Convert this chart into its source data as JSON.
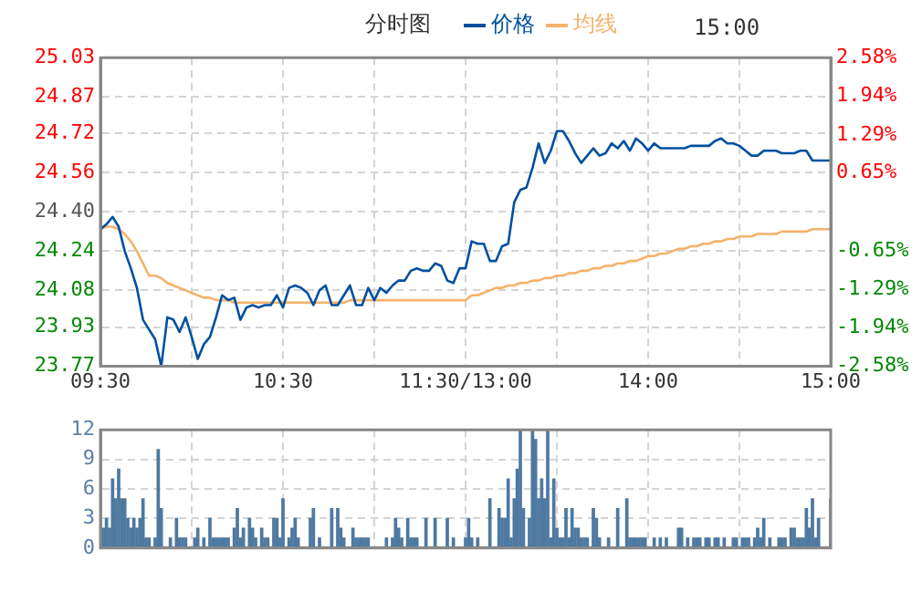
{
  "chart_data": [
    {
      "type": "line",
      "title": "分时图",
      "annotations": [
        "15:00"
      ],
      "legend": "top",
      "grid": true,
      "marker": "none",
      "line_style": "solid",
      "categories": [
        "09:30",
        null,
        null,
        null,
        null,
        null,
        null,
        null,
        null,
        null,
        null,
        null,
        null,
        null,
        null,
        null,
        null,
        null,
        null,
        null,
        null,
        null,
        null,
        null,
        null,
        null,
        null,
        null,
        null,
        null,
        "10:30",
        null,
        null,
        null,
        null,
        null,
        null,
        null,
        null,
        null,
        null,
        null,
        null,
        null,
        null,
        null,
        null,
        null,
        null,
        null,
        null,
        null,
        null,
        null,
        null,
        null,
        null,
        null,
        null,
        null,
        "11:30/13:00",
        null,
        null,
        null,
        null,
        null,
        null,
        null,
        null,
        null,
        null,
        null,
        null,
        null,
        null,
        null,
        null,
        null,
        null,
        null,
        null,
        null,
        null,
        null,
        null,
        null,
        null,
        null,
        null,
        null,
        "14:00",
        null,
        null,
        null,
        null,
        null,
        null,
        null,
        null,
        null,
        null,
        null,
        null,
        null,
        null,
        null,
        null,
        null,
        null,
        null,
        null,
        null,
        null,
        null,
        null,
        null,
        null,
        null,
        null,
        null,
        "15:00"
      ],
      "ylim": [
        23.77,
        25.03
      ],
      "yticks": [
        23.77,
        23.93,
        24.08,
        24.24,
        {
          "value": 24.4,
          "label": "24.40"
        },
        24.56,
        24.72,
        24.87,
        25.03
      ],
      "y2lim": [
        -2.58,
        2.58
      ],
      "y2ticks": [
        {
          "value": -2.58,
          "label": "-2.58%"
        },
        {
          "value": -1.94,
          "label": "-1.94%"
        },
        {
          "value": -1.29,
          "label": "-1.29%"
        },
        {
          "value": -0.65,
          "label": "-0.65%"
        },
        {
          "value": 0,
          "label": null
        },
        {
          "value": 0.65,
          "label": "0.65%"
        },
        {
          "value": 1.29,
          "label": "1.29%"
        },
        {
          "value": 1.94,
          "label": "1.94%"
        },
        {
          "value": 2.58,
          "label": "2.58%"
        }
      ],
      "series": [
        {
          "name": "价格",
          "color": "#0050a0",
          "values": [
            24.33,
            24.35,
            24.38,
            24.34,
            24.24,
            24.17,
            24.09,
            23.96,
            23.92,
            23.88,
            23.77,
            23.97,
            23.96,
            23.91,
            23.97,
            23.89,
            23.8,
            23.86,
            23.89,
            23.97,
            24.06,
            24.04,
            24.05,
            23.96,
            24.01,
            24.02,
            24.01,
            24.02,
            24.02,
            24.06,
            24.01,
            24.09,
            24.1,
            24.09,
            24.07,
            24.02,
            24.08,
            24.1,
            24.02,
            24.02,
            24.06,
            24.1,
            24.02,
            24.02,
            24.09,
            24.04,
            24.09,
            24.07,
            24.1,
            24.12,
            24.12,
            24.16,
            24.17,
            24.16,
            24.16,
            24.19,
            24.18,
            24.12,
            24.11,
            24.17,
            24.17,
            24.28,
            24.27,
            24.27,
            24.2,
            24.2,
            24.26,
            24.27,
            24.44,
            24.49,
            24.5,
            24.58,
            24.68,
            24.6,
            24.65,
            24.73,
            24.73,
            24.69,
            24.64,
            24.6,
            24.63,
            24.66,
            24.63,
            24.64,
            24.68,
            24.66,
            24.69,
            24.65,
            24.7,
            24.68,
            24.65,
            24.68,
            24.66,
            24.66,
            24.66,
            24.66,
            24.66,
            24.67,
            24.67,
            24.67,
            24.67,
            24.69,
            24.7,
            24.68,
            24.68,
            24.67,
            24.65,
            24.63,
            24.63,
            24.65,
            24.65,
            24.65,
            24.64,
            24.64,
            24.64,
            24.65,
            24.65,
            24.61,
            24.61,
            24.61,
            24.61
          ]
        },
        {
          "name": "均线",
          "color": "#f5b26b",
          "values": [
            24.33,
            24.34,
            24.34,
            24.33,
            24.31,
            24.28,
            24.24,
            24.19,
            24.14,
            24.14,
            24.13,
            24.11,
            24.1,
            24.09,
            24.08,
            24.07,
            24.06,
            24.05,
            24.05,
            24.04,
            24.04,
            24.04,
            24.03,
            24.03,
            24.03,
            24.03,
            24.03,
            24.03,
            24.03,
            24.03,
            24.03,
            24.03,
            24.03,
            24.03,
            24.03,
            24.03,
            24.03,
            24.03,
            24.03,
            24.03,
            24.03,
            24.04,
            24.04,
            24.04,
            24.04,
            24.04,
            24.04,
            24.04,
            24.04,
            24.04,
            24.04,
            24.04,
            24.04,
            24.04,
            24.04,
            24.04,
            24.04,
            24.04,
            24.04,
            24.04,
            24.04,
            24.06,
            24.06,
            24.07,
            24.08,
            24.09,
            24.09,
            24.1,
            24.1,
            24.11,
            24.11,
            24.12,
            24.12,
            24.13,
            24.13,
            24.14,
            24.14,
            24.15,
            24.15,
            24.16,
            24.16,
            24.17,
            24.17,
            24.18,
            24.18,
            24.19,
            24.19,
            24.2,
            24.2,
            24.21,
            24.22,
            24.22,
            24.23,
            24.23,
            24.24,
            24.25,
            24.25,
            24.26,
            24.26,
            24.27,
            24.27,
            24.28,
            24.28,
            24.29,
            24.29,
            24.3,
            24.3,
            24.3,
            24.31,
            24.31,
            24.31,
            24.31,
            24.32,
            24.32,
            24.32,
            24.32,
            24.32,
            24.33,
            24.33,
            24.33,
            24.33
          ]
        }
      ]
    },
    {
      "type": "bar",
      "grid": true,
      "tick_labels": "y",
      "categories": [
        null,
        null,
        null,
        null,
        null,
        null,
        null,
        null,
        null,
        null,
        null,
        null,
        null,
        null,
        null,
        null,
        null,
        null,
        null,
        null,
        null,
        null,
        null,
        null,
        null,
        null,
        null,
        null,
        null,
        null,
        null,
        null,
        null,
        null,
        null,
        null,
        null,
        null,
        null,
        null,
        null,
        null,
        null,
        null,
        null,
        null,
        null,
        null,
        null,
        null,
        null,
        null,
        null,
        null,
        null,
        null,
        null,
        null,
        null,
        null,
        null,
        null,
        null,
        null,
        null,
        null,
        null,
        null,
        null,
        null,
        null,
        null,
        null,
        null,
        null,
        null,
        null,
        null,
        null,
        null,
        null,
        null,
        null,
        null,
        null,
        null,
        null,
        null,
        null,
        null,
        null,
        null,
        null,
        null,
        null,
        null,
        null,
        null,
        null,
        null,
        null,
        null,
        null,
        null,
        null,
        null,
        null,
        null,
        null,
        null,
        null,
        null,
        null,
        null,
        null,
        null,
        null,
        null,
        null,
        null,
        null,
        null,
        null,
        null,
        null,
        null,
        null,
        null,
        null,
        null,
        null,
        null,
        null,
        null,
        null,
        null,
        null,
        null,
        null,
        null,
        null,
        null,
        null,
        null,
        null,
        null,
        null,
        null,
        null,
        null,
        null,
        null,
        null,
        null,
        null,
        null,
        null,
        null,
        null,
        null,
        null,
        null,
        null,
        null,
        null,
        null,
        null,
        null,
        null,
        null,
        null,
        null,
        null,
        null,
        null,
        null,
        null,
        null,
        null,
        null,
        null,
        null,
        null,
        null,
        null,
        null,
        null,
        null,
        null,
        null,
        null,
        null,
        null,
        null,
        null,
        null,
        null,
        null,
        null,
        null,
        null,
        null,
        null,
        null,
        null,
        null,
        null,
        null,
        null,
        null,
        null,
        null,
        null,
        null,
        null,
        null,
        null,
        null,
        null,
        null,
        null,
        null,
        null,
        null,
        null,
        null,
        null,
        null,
        null,
        null,
        null,
        null,
        null,
        null,
        null,
        null,
        null,
        null,
        null,
        null,
        null
      ],
      "ylim": [
        0,
        12
      ],
      "yticks": [
        0,
        3,
        6,
        9,
        12
      ],
      "series": [
        {
          "color": "#4e79a0",
          "values": [
            0,
            2,
            3,
            2,
            7,
            5,
            8,
            5,
            5,
            3,
            2,
            3,
            2,
            3,
            5,
            1,
            1,
            0,
            1,
            10,
            4,
            0,
            0,
            1,
            0,
            3,
            1,
            1,
            1,
            0,
            0,
            1,
            2,
            0,
            1,
            0,
            3,
            1,
            1,
            1,
            1,
            1,
            1,
            0,
            2,
            4,
            1,
            2,
            0,
            3,
            2,
            1,
            0,
            2,
            1,
            1,
            0,
            3,
            3,
            1,
            5,
            0,
            1,
            2,
            3,
            1,
            0,
            0,
            0,
            3,
            4,
            0,
            1,
            0,
            0,
            0,
            4,
            0,
            4,
            2,
            1,
            0,
            0,
            2,
            1,
            1,
            1,
            1,
            1,
            0,
            0,
            0,
            0,
            0,
            1,
            0,
            1,
            3,
            2,
            1,
            0,
            3,
            1,
            1,
            1,
            0,
            0,
            3,
            0,
            0,
            3,
            0,
            0,
            0,
            3,
            0,
            1,
            0,
            0,
            0,
            1,
            3,
            1,
            0,
            1,
            0,
            0,
            0,
            5,
            0,
            0,
            4,
            3,
            3,
            7,
            1,
            5,
            8,
            12,
            4,
            0,
            3,
            12,
            11,
            5,
            7,
            5,
            12,
            1,
            7,
            2,
            1,
            1,
            4,
            1,
            4,
            2,
            2,
            1,
            1,
            1,
            0,
            4,
            3,
            1,
            0,
            0,
            1,
            0,
            0,
            4,
            0,
            0,
            5,
            1,
            1,
            1,
            1,
            1,
            1,
            0,
            0,
            1,
            0,
            1,
            0,
            1,
            0,
            0,
            0,
            2,
            2,
            0,
            1,
            0,
            1,
            1,
            1,
            0,
            1,
            1,
            0,
            1,
            1,
            0,
            1,
            0,
            0,
            1,
            1,
            0,
            1,
            1,
            1,
            0,
            1,
            2,
            1,
            3,
            0,
            1,
            0,
            0,
            1,
            1,
            1,
            0,
            2,
            2,
            1,
            1,
            1,
            4,
            2,
            5,
            1,
            3,
            0,
            0,
            0,
            5
          ]
        }
      ]
    }
  ]
}
